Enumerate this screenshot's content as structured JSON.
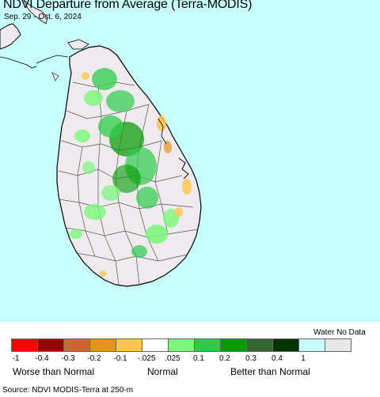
{
  "title": "NDVI Departure from Average (Terra-MODIS)",
  "date_range": "Sep. 29 - Oct. 6, 2024",
  "legend": {
    "water_no_data_label": "Water No Data",
    "swatches": [
      {
        "color": "#ff0000",
        "name": "swatch-1"
      },
      {
        "color": "#990000",
        "name": "swatch-2"
      },
      {
        "color": "#cc6633",
        "name": "swatch-3"
      },
      {
        "color": "#e69418",
        "name": "swatch-4"
      },
      {
        "color": "#ffc64a",
        "name": "swatch-5"
      },
      {
        "color": "#ffffff",
        "name": "swatch-6"
      },
      {
        "color": "#7af77a",
        "name": "swatch-7"
      },
      {
        "color": "#2ecc4a",
        "name": "swatch-8"
      },
      {
        "color": "#009900",
        "name": "swatch-9"
      },
      {
        "color": "#336633",
        "name": "swatch-10"
      },
      {
        "color": "#003300",
        "name": "swatch-11"
      },
      {
        "color": "#c8ffff",
        "name": "swatch-water"
      },
      {
        "color": "#e8e8e8",
        "name": "swatch-nodata"
      }
    ],
    "ticks": [
      "-1",
      "-0.4",
      "-0.3",
      "-0.2",
      "-0.1",
      "-.025",
      ".025",
      "0.1",
      "0.2",
      "0.3",
      "0.4",
      "1"
    ],
    "worse_label": "Worse than Normal",
    "normal_label": "Normal",
    "better_label": "Better than Normal"
  },
  "source": "Source: NDVI MODIS-Terra at 250-m",
  "colors": {
    "water": "#c8ffff",
    "land": "#eeeaee",
    "border": "#000000"
  }
}
